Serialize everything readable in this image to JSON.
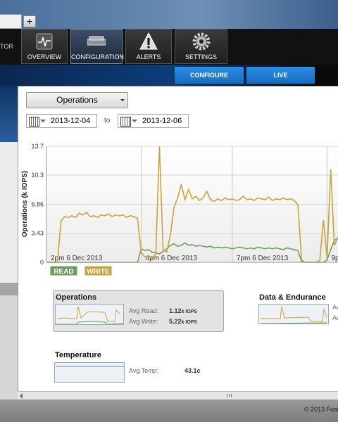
{
  "browser": {
    "new_tab": "+"
  },
  "nav": {
    "brand": "TOR",
    "items": [
      {
        "label": "OVERVIEW"
      },
      {
        "label": "CONFIGURATION"
      },
      {
        "label": "ALERTS"
      },
      {
        "label": "SETTINGS"
      }
    ]
  },
  "subnav": {
    "tabs": [
      "CONFIGURE",
      "LIVE"
    ]
  },
  "panel": {
    "dropdown": "Operations",
    "date_from": "2013-12-04",
    "to": "to",
    "date_to": "2013-12-06"
  },
  "chart_data": {
    "type": "line",
    "y_label": "Operations (k IOPS)",
    "xlim": [
      0,
      80
    ],
    "xticks": [
      {
        "value": 0,
        "label": "2pm 6 Dec 2013"
      },
      {
        "value": 26,
        "label": "4pm 6 Dec 2013"
      },
      {
        "value": 51,
        "label": "7pm 6 Dec 2013"
      },
      {
        "value": 77,
        "label": "9p"
      }
    ],
    "ylim": [
      0,
      13.7
    ],
    "yticks": [
      0,
      3.43,
      6.86,
      10.3,
      13.7
    ],
    "grid": true,
    "series": [
      {
        "name": "READ",
        "color": "#6b9e5c",
        "values": [
          0,
          0,
          0,
          0,
          0,
          0,
          0,
          0,
          0,
          0,
          0,
          0,
          0,
          0,
          0,
          0,
          0,
          0,
          0,
          0,
          0,
          0,
          0,
          0,
          0,
          0,
          1.6,
          1.4,
          1.5,
          1.2,
          1.1,
          1.0,
          1.3,
          1.6,
          2.0,
          2.2,
          1.9,
          2.0,
          2.3,
          2.0,
          2.1,
          1.9,
          2.0,
          1.9,
          1.8,
          1.9,
          1.7,
          1.8,
          1.7,
          1.8,
          1.7,
          1.6,
          1.7,
          1.8,
          1.7,
          1.6,
          1.7,
          1.6,
          1.8,
          1.7,
          1.6,
          1.7,
          1.6,
          1.7,
          1.6,
          1.5,
          1.7,
          1.6,
          1.5,
          1.4,
          0.1,
          0,
          0,
          0,
          0,
          0,
          0,
          0.3,
          1.5,
          2.6,
          2.8
        ]
      },
      {
        "name": "WRITE",
        "color": "#c9a43a",
        "values": [
          0,
          0,
          0,
          0,
          4.9,
          5.4,
          5.3,
          5.5,
          5.3,
          5.8,
          5.6,
          5.9,
          5.4,
          5.5,
          5.3,
          5.6,
          5.5,
          5.7,
          5.4,
          5.6,
          5.5,
          5.6,
          5.3,
          5.5,
          5.4,
          5.2,
          1.2,
          0.6,
          0.8,
          0.4,
          1.0,
          13.7,
          1.5,
          1.2,
          3.2,
          6.5,
          7.6,
          9.2,
          7.4,
          8.6,
          7.5,
          7.8,
          7.3,
          7.6,
          8.4,
          7.4,
          7.2,
          7.5,
          7.3,
          7.6,
          7.4,
          7.5,
          7.3,
          7.4,
          7.8,
          7.4,
          7.5,
          7.3,
          7.6,
          7.5,
          7.4,
          7.7,
          7.3,
          7.5,
          7.4,
          7.6,
          7.4,
          7.5,
          7.3,
          6.8,
          0.3,
          0,
          0,
          0,
          0,
          0.2,
          5.0,
          0.5,
          11.0,
          2.0,
          3.0
        ]
      }
    ]
  },
  "cards": {
    "operations": {
      "title": "Operations",
      "rows": [
        {
          "label": "Avg Read:",
          "value": "1.12",
          "unit": "k IOPS"
        },
        {
          "label": "Avg Write:",
          "value": "5.22",
          "unit": "k IOPS"
        }
      ]
    },
    "endurance": {
      "title": "Data & Endurance",
      "rows": [
        "Av",
        "Av"
      ]
    },
    "temperature": {
      "title": "Temperature",
      "label": "Avg Temp:",
      "value": "43.1c"
    }
  },
  "footer": "© 2013 Fusi"
}
